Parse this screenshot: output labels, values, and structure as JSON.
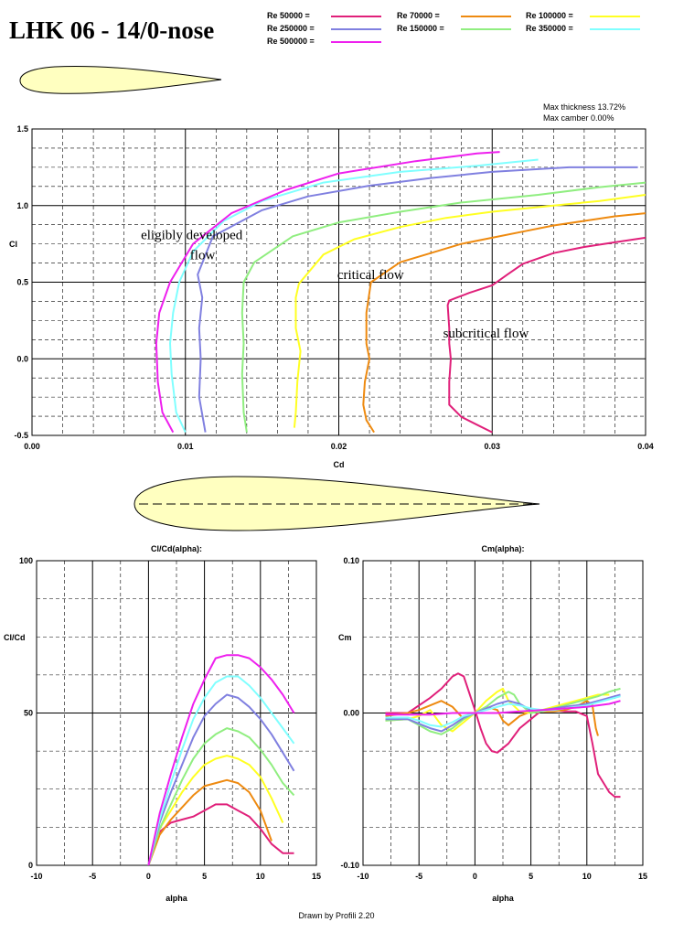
{
  "title": "LHK 06 - 14/0-nose",
  "info": {
    "thickness": "Max thickness 13.72%",
    "camber": "Max camber 0.00%"
  },
  "credit": "Drawn by Profili 2.20",
  "colors": {
    "airfoil_fill": "#ffffc0",
    "grid": "#000000"
  },
  "legend": [
    {
      "label": "Re 50000 =",
      "color": "#e0207a"
    },
    {
      "label": "Re 70000 =",
      "color": "#ee8a10"
    },
    {
      "label": "Re 100000 =",
      "color": "#ffff22"
    },
    {
      "label": "Re 250000 =",
      "color": "#8080e0"
    },
    {
      "label": "Re 150000 =",
      "color": "#90ee80"
    },
    {
      "label": "Re 350000 =",
      "color": "#80ffff"
    },
    {
      "label": "Re 500000 =",
      "color": "#ee20ee"
    }
  ],
  "chart_data": [
    {
      "type": "line",
      "title": "",
      "xlabel": "Cd",
      "ylabel": "Cl",
      "xlim": [
        0,
        0.04
      ],
      "ylim": [
        -0.5,
        1.5
      ],
      "xticks": [
        "0.00",
        "0.01",
        "0.02",
        "0.03",
        "0.04"
      ],
      "yticks": [
        "-0.5",
        "0.0",
        "0.5",
        "1.0",
        "1.5"
      ],
      "grid": true,
      "annotations": [
        {
          "text": "eligibly developed",
          "x": 0.0071,
          "y": 0.78
        },
        {
          "text": "flow",
          "x": 0.0103,
          "y": 0.65
        },
        {
          "text": "critical flow",
          "x": 0.0199,
          "y": 0.52
        },
        {
          "text": "subcritical flow",
          "x": 0.0268,
          "y": 0.14
        }
      ],
      "series": [
        {
          "color": "#e0207a",
          "x": [
            0.03,
            0.029,
            0.028,
            0.0272,
            0.0272,
            0.0273,
            0.0272,
            0.0272,
            0.0271,
            0.0272,
            0.0277,
            0.0285,
            0.03,
            0.031,
            0.032,
            0.034,
            0.036,
            0.038,
            0.04
          ],
          "y": [
            -0.48,
            -0.43,
            -0.38,
            -0.3,
            -0.15,
            0.0,
            0.1,
            0.2,
            0.35,
            0.38,
            0.4,
            0.43,
            0.48,
            0.55,
            0.62,
            0.69,
            0.73,
            0.76,
            0.79
          ]
        },
        {
          "color": "#ee8a10",
          "x": [
            0.0223,
            0.0218,
            0.0216,
            0.0217,
            0.022,
            0.0218,
            0.0218,
            0.0221,
            0.024,
            0.026,
            0.028,
            0.03,
            0.032,
            0.034,
            0.036,
            0.038,
            0.04
          ],
          "y": [
            -0.48,
            -0.4,
            -0.3,
            -0.15,
            0.0,
            0.1,
            0.3,
            0.5,
            0.63,
            0.69,
            0.75,
            0.79,
            0.83,
            0.87,
            0.9,
            0.93,
            0.95
          ]
        },
        {
          "color": "#ffff22",
          "x": [
            0.0171,
            0.0172,
            0.0173,
            0.0175,
            0.0172,
            0.0172,
            0.0174,
            0.019,
            0.021,
            0.024,
            0.027,
            0.03,
            0.034,
            0.037,
            0.04
          ],
          "y": [
            -0.45,
            -0.35,
            -0.15,
            0.05,
            0.2,
            0.4,
            0.49,
            0.68,
            0.78,
            0.86,
            0.92,
            0.96,
            1.0,
            1.03,
            1.07
          ]
        },
        {
          "color": "#90ee80",
          "x": [
            0.014,
            0.0138,
            0.0137,
            0.0138,
            0.0137,
            0.0138,
            0.0145,
            0.017,
            0.02,
            0.024,
            0.028,
            0.033,
            0.037,
            0.04
          ],
          "y": [
            -0.48,
            -0.35,
            -0.1,
            0.1,
            0.3,
            0.5,
            0.63,
            0.8,
            0.89,
            0.96,
            1.02,
            1.07,
            1.12,
            1.15
          ]
        },
        {
          "color": "#8080e0",
          "x": [
            0.0113,
            0.0109,
            0.011,
            0.0109,
            0.0111,
            0.0108,
            0.0118,
            0.015,
            0.018,
            0.022,
            0.026,
            0.03,
            0.035,
            0.0395
          ],
          "y": [
            -0.48,
            -0.25,
            0.0,
            0.2,
            0.4,
            0.55,
            0.8,
            0.97,
            1.06,
            1.13,
            1.18,
            1.22,
            1.25,
            1.25
          ]
        },
        {
          "color": "#80ffff",
          "x": [
            0.01,
            0.0094,
            0.0091,
            0.009,
            0.0092,
            0.0096,
            0.0105,
            0.0125,
            0.015,
            0.019,
            0.024,
            0.029,
            0.033
          ],
          "y": [
            -0.48,
            -0.35,
            -0.1,
            0.1,
            0.3,
            0.5,
            0.7,
            0.9,
            1.03,
            1.15,
            1.22,
            1.26,
            1.3
          ]
        },
        {
          "color": "#ee20ee",
          "x": [
            0.0092,
            0.0085,
            0.0082,
            0.0081,
            0.0083,
            0.009,
            0.0105,
            0.013,
            0.0165,
            0.02,
            0.025,
            0.029,
            0.0305
          ],
          "y": [
            -0.48,
            -0.35,
            -0.15,
            0.1,
            0.3,
            0.5,
            0.75,
            0.95,
            1.1,
            1.21,
            1.29,
            1.34,
            1.35
          ]
        }
      ]
    },
    {
      "type": "line",
      "title": "Cl/Cd(alpha):",
      "xlabel": "alpha",
      "ylabel": "Cl/Cd",
      "xlim": [
        -10,
        15
      ],
      "ylim": [
        0,
        100
      ],
      "xticks": [
        "-10",
        "-5",
        "0",
        "5",
        "10",
        "15"
      ],
      "yticks": [
        "0",
        "50",
        "100"
      ],
      "grid": true,
      "series": [
        {
          "color": "#e0207a",
          "x": [
            0,
            1,
            2,
            3,
            4,
            5,
            6,
            7,
            8,
            8.5,
            9,
            10,
            11,
            12,
            13
          ],
          "y": [
            0,
            11,
            14,
            15,
            16,
            18,
            20,
            20,
            18,
            17,
            16,
            12,
            7,
            4,
            4
          ]
        },
        {
          "color": "#ee8a10",
          "x": [
            0,
            1,
            2,
            3,
            4,
            5,
            6,
            7,
            8,
            9,
            10,
            11
          ],
          "y": [
            0,
            10,
            15,
            19,
            23,
            26,
            27,
            28,
            27,
            24,
            18,
            8
          ]
        },
        {
          "color": "#ffff22",
          "x": [
            0,
            1,
            2,
            3,
            4,
            5,
            6,
            7,
            8,
            9,
            10,
            11,
            12
          ],
          "y": [
            0,
            12,
            18,
            24,
            29,
            33,
            35,
            36,
            35,
            33,
            29,
            22,
            14
          ]
        },
        {
          "color": "#90ee80",
          "x": [
            0,
            1,
            2,
            3,
            4,
            5,
            6,
            7,
            8,
            9,
            10,
            11,
            12,
            13
          ],
          "y": [
            0,
            12,
            20,
            28,
            35,
            40,
            43,
            45,
            44,
            42,
            38,
            33,
            27,
            23
          ]
        },
        {
          "color": "#8080e0",
          "x": [
            0,
            1,
            2,
            3,
            4,
            5,
            6,
            7,
            8,
            9,
            10,
            11,
            12,
            13
          ],
          "y": [
            0,
            14,
            24,
            33,
            42,
            49,
            53,
            56,
            55,
            52,
            48,
            43,
            37,
            31
          ]
        },
        {
          "color": "#80ffff",
          "x": [
            0,
            1,
            2,
            3,
            4,
            5,
            6,
            7,
            8,
            9,
            10,
            11,
            12,
            13
          ],
          "y": [
            0,
            15,
            27,
            38,
            48,
            55,
            60,
            62,
            62,
            59,
            55,
            50,
            45,
            40
          ]
        },
        {
          "color": "#ee20ee",
          "x": [
            0,
            1,
            2,
            3,
            4,
            5,
            6,
            7,
            8,
            9,
            10,
            11,
            12,
            13
          ],
          "y": [
            0,
            17,
            30,
            42,
            53,
            61,
            68,
            69,
            69,
            68,
            65,
            61,
            56,
            50
          ]
        }
      ]
    },
    {
      "type": "line",
      "title": "Cm(alpha):",
      "xlabel": "alpha",
      "ylabel": "Cm",
      "xlim": [
        -10,
        15
      ],
      "ylim": [
        -0.1,
        0.1
      ],
      "xticks": [
        "-10",
        "-5",
        "0",
        "5",
        "10",
        "15"
      ],
      "yticks": [
        "-0.10",
        "0.00",
        "0.10"
      ],
      "grid": true,
      "series": [
        {
          "color": "#e0207a",
          "x": [
            -8,
            -6,
            -5,
            -4,
            -3,
            -2,
            -1.5,
            -1,
            0,
            0.5,
            1,
            1.5,
            2,
            3,
            4,
            5,
            6,
            7,
            8,
            9,
            10,
            10.5,
            11,
            12,
            12.5,
            13
          ],
          "y": [
            0,
            0,
            0.005,
            0.01,
            0.016,
            0.024,
            0.026,
            0.024,
            0.002,
            -0.01,
            -0.02,
            -0.025,
            -0.026,
            -0.02,
            -0.01,
            -0.004,
            0.002,
            0.002,
            0.001,
            0.001,
            -0.002,
            -0.02,
            -0.04,
            -0.052,
            -0.055,
            -0.055
          ]
        },
        {
          "color": "#ee8a10",
          "x": [
            -8,
            -6,
            -5,
            -4,
            -3,
            -2,
            -1,
            0,
            1,
            2,
            2.5,
            3,
            4,
            5,
            6,
            7,
            8,
            9,
            10,
            10.5,
            10.8,
            11
          ],
          "y": [
            -0.002,
            0,
            0.002,
            0.005,
            0.008,
            0.004,
            -0.004,
            0,
            0.004,
            0.002,
            -0.005,
            -0.008,
            -0.002,
            0.001,
            0.001,
            0.001,
            0.002,
            0.004,
            0.008,
            0.005,
            -0.01,
            -0.015
          ]
        },
        {
          "color": "#ffff22",
          "x": [
            -8,
            -6,
            -5,
            -4,
            -3,
            -2,
            -1,
            0,
            1,
            2,
            2.5,
            3,
            4,
            5,
            6,
            7,
            8,
            9,
            10,
            11,
            12
          ],
          "y": [
            -0.005,
            -0.004,
            -0.002,
            0.002,
            -0.008,
            -0.012,
            -0.006,
            0,
            0.008,
            0.014,
            0.016,
            0.008,
            0.001,
            0,
            0.002,
            0.004,
            0.006,
            0.008,
            0.01,
            0.012,
            0.012
          ]
        },
        {
          "color": "#90ee80",
          "x": [
            -8,
            -6,
            -5,
            -4,
            -3,
            -2,
            -1,
            0,
            1,
            2,
            3,
            3.5,
            4,
            5,
            6,
            7,
            8,
            9,
            10,
            11,
            12,
            13
          ],
          "y": [
            -0.005,
            -0.004,
            -0.008,
            -0.012,
            -0.014,
            -0.01,
            -0.004,
            0,
            0.004,
            0.01,
            0.014,
            0.012,
            0.006,
            0,
            0.001,
            0.003,
            0.005,
            0.007,
            0.009,
            0.011,
            0.014,
            0.016
          ]
        },
        {
          "color": "#8080e0",
          "x": [
            -8,
            -6,
            -5,
            -4,
            -3,
            -2,
            -1,
            0,
            1,
            2,
            3,
            4,
            5,
            6,
            7,
            8,
            9,
            10,
            11,
            12,
            13
          ],
          "y": [
            -0.004,
            -0.004,
            -0.007,
            -0.01,
            -0.012,
            -0.008,
            -0.003,
            0,
            0.003,
            0.006,
            0.008,
            0.006,
            0.002,
            0.002,
            0.003,
            0.004,
            0.005,
            0.006,
            0.008,
            0.01,
            0.012
          ]
        },
        {
          "color": "#80ffff",
          "x": [
            -8,
            -6,
            -5,
            -4,
            -3,
            -2,
            -1,
            0,
            1,
            2,
            3,
            4,
            5,
            6,
            7,
            8,
            9,
            10,
            11,
            12,
            13
          ],
          "y": [
            -0.003,
            -0.003,
            -0.005,
            -0.008,
            -0.009,
            -0.006,
            -0.002,
            0,
            0.002,
            0.004,
            0.006,
            0.005,
            0.003,
            0.002,
            0.002,
            0.003,
            0.004,
            0.005,
            0.007,
            0.009,
            0.011
          ]
        },
        {
          "color": "#ee20ee",
          "x": [
            -8,
            -6,
            -4,
            -2,
            0,
            2,
            4,
            6,
            8,
            10,
            12,
            13
          ],
          "y": [
            -0.001,
            -0.001,
            -0.001,
            0,
            0,
            0,
            0.001,
            0.002,
            0.003,
            0.004,
            0.006,
            0.008
          ]
        }
      ]
    }
  ]
}
